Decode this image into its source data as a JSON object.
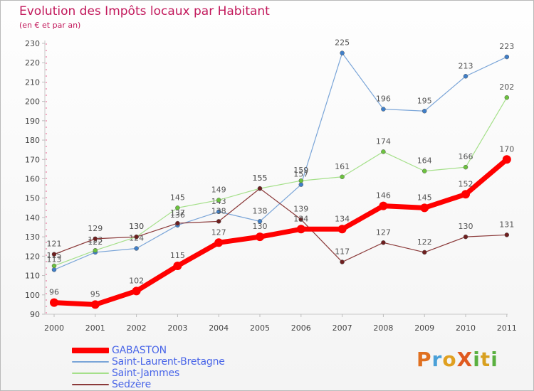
{
  "chart_data": {
    "type": "line",
    "title": "Evolution des Impôts locaux par Habitant",
    "subtitle": "(en € et par an)",
    "xlabel": "",
    "ylabel": "",
    "ylim": [
      90,
      230
    ],
    "yticks": [
      "90",
      "100",
      "110",
      "120",
      "130",
      "140",
      "150",
      "160",
      "170",
      "180",
      "190",
      "200",
      "210",
      "220",
      "230"
    ],
    "categories": [
      "2000",
      "2001",
      "2002",
      "2003",
      "2004",
      "2005",
      "2006",
      "2007",
      "2008",
      "2009",
      "2010",
      "2011"
    ],
    "series": [
      {
        "name": "Saint-Laurent-Bretagne",
        "color": "#7aa5d8",
        "marker": "#3f7fc9",
        "values": [
          113,
          122,
          124,
          136,
          143,
          138,
          157,
          225,
          196,
          195,
          213,
          223
        ],
        "labels": [
          "113",
          "122",
          "124",
          "136",
          "143",
          "138",
          "157",
          "225",
          "196",
          "195",
          "213",
          "223"
        ]
      },
      {
        "name": "Saint-Jammes",
        "color": "#a5e08a",
        "marker": "#6cc23e",
        "values": [
          115,
          123,
          130,
          145,
          149,
          155,
          159,
          161,
          174,
          164,
          166,
          202
        ],
        "labels": [
          "115",
          "123",
          "130",
          "145",
          "149",
          "155",
          "159",
          "161",
          "174",
          "164",
          "166",
          "202"
        ]
      },
      {
        "name": "Sedzère",
        "color": "#8b3a3a",
        "marker": "#6e1f1f",
        "values": [
          121,
          129,
          130,
          137,
          138,
          155,
          139,
          117,
          127,
          122,
          130,
          131
        ],
        "labels": [
          "121",
          "129",
          "130",
          "137",
          "138",
          "155",
          "139",
          "117",
          "127",
          "122",
          "130",
          "131"
        ]
      },
      {
        "name": "GABASTON",
        "color": "#ff0000",
        "marker": "#ff0000",
        "values": [
          96,
          95,
          102,
          115,
          127,
          130,
          134,
          134,
          146,
          145,
          152,
          170
        ],
        "labels": [
          "96",
          "95",
          "102",
          "115",
          "127",
          "130",
          "134",
          "134",
          "146",
          "145",
          "152",
          "170"
        ]
      }
    ],
    "legend_order": [
      "GABASTON",
      "Saint-Laurent-Bretagne",
      "Saint-Jammes",
      "Sedzère"
    ],
    "grid": false,
    "legend_position": "bottom-left"
  },
  "brand": {
    "text": "ProXiti",
    "letters": [
      {
        "ch": "P",
        "color": "#e07020"
      },
      {
        "ch": "r",
        "color": "#4aa0d8"
      },
      {
        "ch": "o",
        "color": "#e0a020"
      },
      {
        "ch": "X",
        "color": "#e05a20"
      },
      {
        "ch": "i",
        "color": "#5ab040"
      },
      {
        "ch": "t",
        "color": "#d8a020"
      },
      {
        "ch": "i",
        "color": "#5ab040"
      }
    ]
  }
}
